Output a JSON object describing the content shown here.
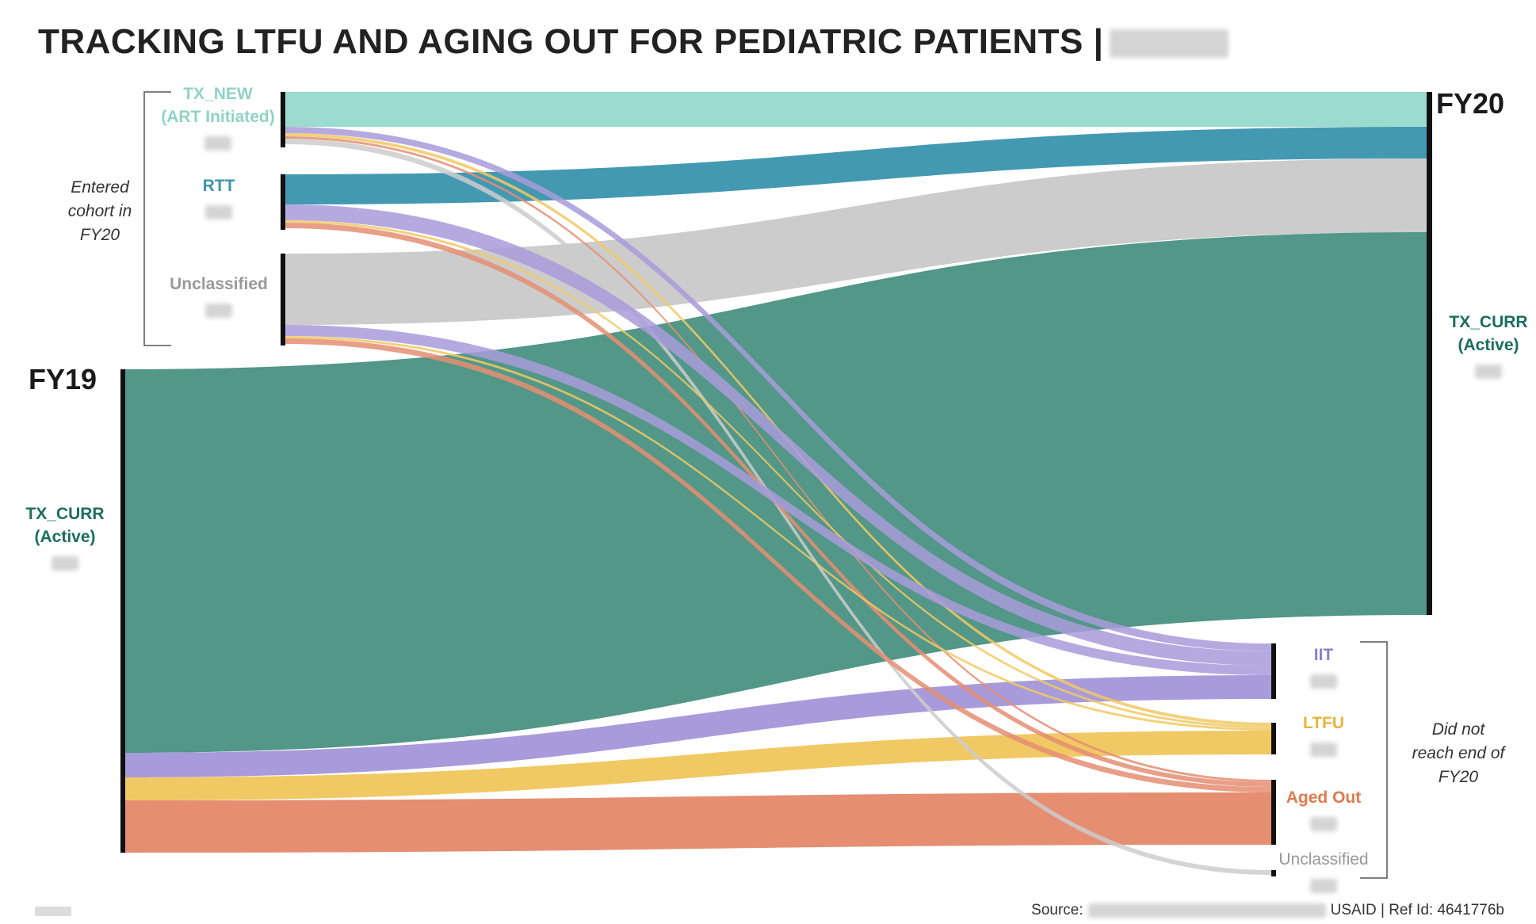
{
  "header": {
    "title": "TRACKING LTFU AND AGING OUT FOR PEDIATRIC PATIENTS |"
  },
  "periods": {
    "start": "FY19",
    "end": "FY20"
  },
  "notes": {
    "entered": "Entered cohort in FY20",
    "did_not_reach": "Did not reach end of FY20"
  },
  "nodes": {
    "tx_new": {
      "line1": "TX_NEW",
      "line2": "(ART Initiated)",
      "color": "#8fd3c7"
    },
    "rtt": {
      "line1": "RTT",
      "line2": "",
      "color": "#3b94ab"
    },
    "unclassified_in": {
      "line1": "Unclassified",
      "line2": "",
      "color": "#a7a7a7"
    },
    "tx_curr_fy19": {
      "line1": "TX_CURR",
      "line2": "(Active)",
      "color": "#1b6e5f"
    },
    "tx_curr_fy20": {
      "line1": "TX_CURR",
      "line2": "(Active)",
      "color": "#1b6e5f"
    },
    "iit": {
      "line1": "IIT",
      "line2": "",
      "color": "#8d7fce"
    },
    "ltfu": {
      "line1": "LTFU",
      "line2": "",
      "color": "#e8b53a"
    },
    "aged_out": {
      "line1": "Aged Out",
      "line2": "",
      "color": "#e07a4f"
    },
    "unclassified_out": {
      "line1": "Unclassified",
      "line2": "",
      "color": "#a7a7a7"
    }
  },
  "flow_colors": {
    "tx_new": "#9adccf",
    "rtt": "#4499b2",
    "unclassified": "#cccccc",
    "tx_curr": "#529787",
    "iit": "#a89bdb",
    "ltfu": "#f1c964",
    "aged_out": "#e58e72"
  },
  "footer": {
    "source_label": "Source:",
    "source_suffix": "USAID | Ref Id: 4641776b"
  }
}
